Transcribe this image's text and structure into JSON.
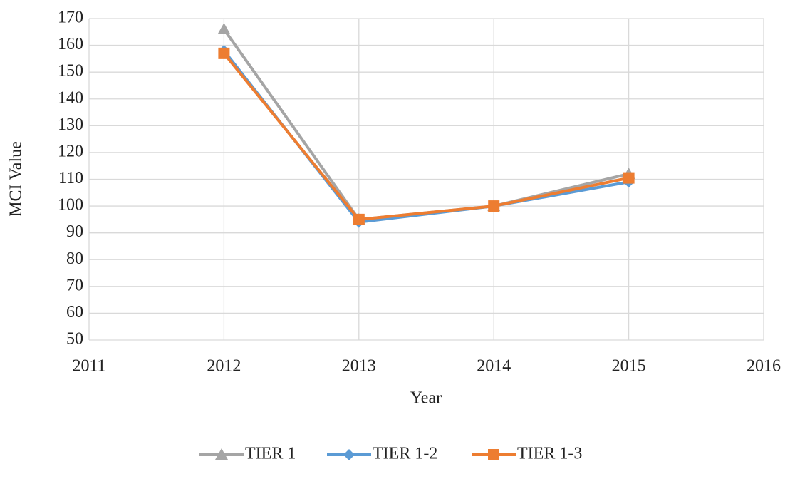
{
  "chart_data": {
    "type": "line",
    "x": [
      2012,
      2013,
      2014,
      2015
    ],
    "series": [
      {
        "name": "TIER 1",
        "color": "#a5a5a5",
        "marker": "triangle",
        "values": [
          166,
          95,
          100,
          112
        ]
      },
      {
        "name": "TIER 1-2",
        "color": "#5b9bd5",
        "marker": "diamond",
        "values": [
          158,
          94,
          100,
          109
        ]
      },
      {
        "name": "TIER 1-3",
        "color": "#ed7d31",
        "marker": "square",
        "values": [
          157,
          95,
          100,
          110.5
        ]
      }
    ],
    "xlim": [
      2011,
      2016
    ],
    "xticks": [
      2011,
      2012,
      2013,
      2014,
      2015,
      2016
    ],
    "ylim": [
      50,
      170
    ],
    "yticks": [
      50,
      60,
      70,
      80,
      90,
      100,
      110,
      120,
      130,
      140,
      150,
      160,
      170
    ],
    "xlabel": "Year",
    "ylabel": "MCI Value",
    "grid": true,
    "legend": "bottom"
  }
}
